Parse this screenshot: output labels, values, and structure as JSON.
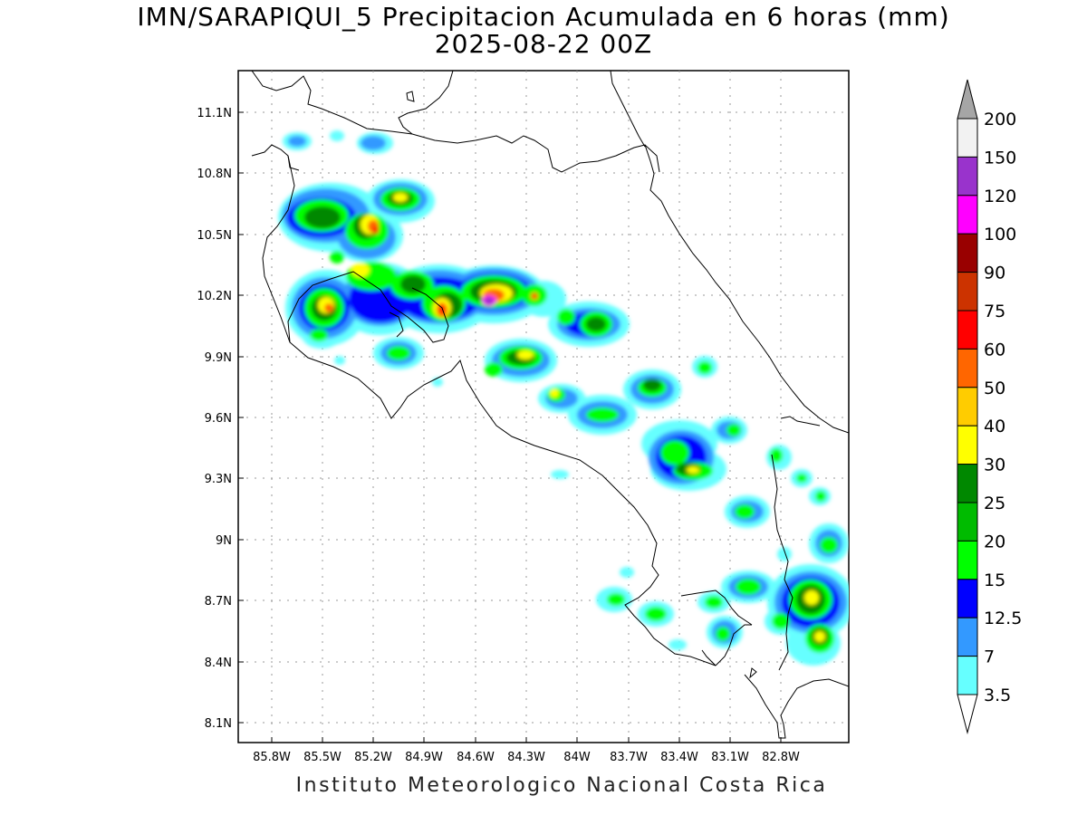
{
  "title_line1": "IMN/SARAPIQUI_5 Precipitacion Acumulada en 6 horas (mm)",
  "title_line2": "2025-08-22 00Z",
  "footer": "Instituto Meteorologico Nacional Costa Rica",
  "lon_labels": [
    "85.8W",
    "85.5W",
    "85.2W",
    "84.9W",
    "84.6W",
    "84.3W",
    "84W",
    "83.7W",
    "83.4W",
    "83.1W",
    "82.8W"
  ],
  "lat_labels": [
    "11.1N",
    "10.8N",
    "10.5N",
    "10.2N",
    "9.9N",
    "9.6N",
    "9.3N",
    "9N",
    "8.7N",
    "8.4N",
    "8.1N"
  ],
  "colorbar": {
    "labels": [
      "200",
      "150",
      "120",
      "100",
      "90",
      "75",
      "60",
      "50",
      "40",
      "30",
      "25",
      "20",
      "15",
      "12.5",
      "7",
      "3.5"
    ],
    "colors": [
      "#f2f2f2",
      "#9933cc",
      "#ff00ff",
      "#990000",
      "#cc3300",
      "#ff0000",
      "#ff6600",
      "#ffcc00",
      "#ffff00",
      "#008800",
      "#00bb00",
      "#00ff00",
      "#0000ff",
      "#3399ff",
      "#66ffff"
    ]
  },
  "precip_colors": {
    "c3_5": "#66ffff",
    "c7": "#3399ff",
    "c12_5": "#0000ff",
    "c15": "#00ff00",
    "c20": "#00bb00",
    "c25": "#008800",
    "c30": "#ffff00",
    "c40": "#ffcc00",
    "c50": "#ff6600",
    "c60": "#ff0000",
    "c75": "#cc3300",
    "c120": "#ff00ff",
    "c150": "#9933cc"
  }
}
